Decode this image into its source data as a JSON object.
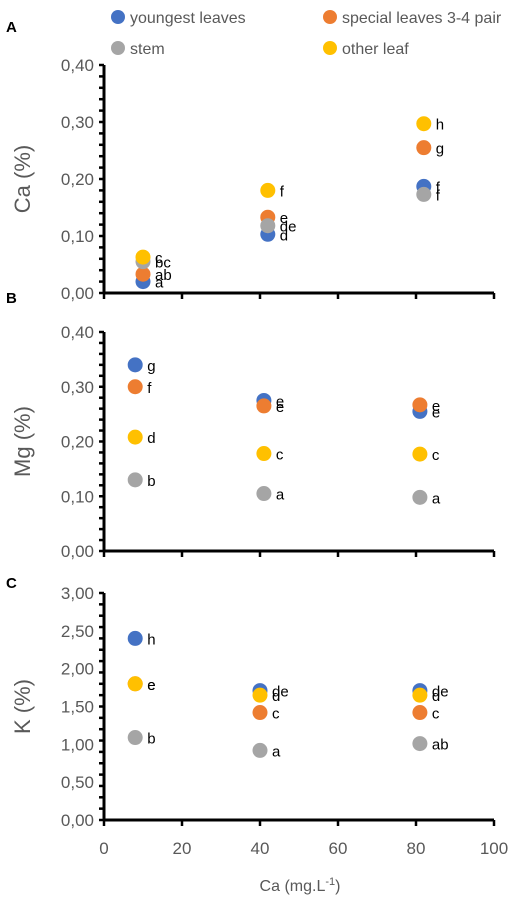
{
  "legend": {
    "entries": [
      {
        "name": "youngest leaves",
        "color": "#4472C4"
      },
      {
        "name": "special leaves 3-4 pair",
        "color": "#ED7D31"
      },
      {
        "name": "stem",
        "color": "#A5A5A5"
      },
      {
        "name": "other leaf",
        "color": "#FFC000"
      }
    ]
  },
  "chart_data": [
    {
      "type": "scatter",
      "panel": "A",
      "ylabel": "Ca (%)",
      "ylim": [
        0,
        0.4
      ],
      "yticks": [
        "0,00",
        "0,10",
        "0,20",
        "0,30",
        "0,40"
      ],
      "xlim": [
        0,
        100
      ],
      "series": [
        {
          "name": "youngest leaves",
          "color": "#4472C4",
          "points": [
            {
              "x": 10,
              "y": 0.02,
              "label": "a"
            },
            {
              "x": 42,
              "y": 0.103,
              "label": "d"
            },
            {
              "x": 82,
              "y": 0.187,
              "label": "f"
            }
          ]
        },
        {
          "name": "special leaves 3-4 pair",
          "color": "#ED7D31",
          "points": [
            {
              "x": 10,
              "y": 0.033,
              "label": "ab"
            },
            {
              "x": 42,
              "y": 0.133,
              "label": "e"
            },
            {
              "x": 82,
              "y": 0.255,
              "label": "g"
            }
          ]
        },
        {
          "name": "stem",
          "color": "#A5A5A5",
          "points": [
            {
              "x": 10,
              "y": 0.055,
              "label": "bc"
            },
            {
              "x": 42,
              "y": 0.118,
              "label": "de"
            },
            {
              "x": 82,
              "y": 0.173,
              "label": "f"
            }
          ]
        },
        {
          "name": "other leaf",
          "color": "#FFC000",
          "points": [
            {
              "x": 10,
              "y": 0.063,
              "label": "c"
            },
            {
              "x": 42,
              "y": 0.18,
              "label": "f"
            },
            {
              "x": 82,
              "y": 0.297,
              "label": "h"
            }
          ]
        }
      ]
    },
    {
      "type": "scatter",
      "panel": "B",
      "ylabel": "Mg (%)",
      "ylim": [
        0,
        0.4
      ],
      "yticks": [
        "0,00",
        "0,10",
        "0,20",
        "0,30",
        "0,40"
      ],
      "xlim": [
        0,
        100
      ],
      "series": [
        {
          "name": "youngest leaves",
          "color": "#4472C4",
          "points": [
            {
              "x": 8,
              "y": 0.34,
              "label": "g"
            },
            {
              "x": 41,
              "y": 0.275,
              "label": "e"
            },
            {
              "x": 81,
              "y": 0.255,
              "label": "e"
            }
          ]
        },
        {
          "name": "special leaves 3-4 pair",
          "color": "#ED7D31",
          "points": [
            {
              "x": 8,
              "y": 0.3,
              "label": "f"
            },
            {
              "x": 41,
              "y": 0.265,
              "label": "e"
            },
            {
              "x": 81,
              "y": 0.267,
              "label": "e"
            }
          ]
        },
        {
          "name": "stem",
          "color": "#A5A5A5",
          "points": [
            {
              "x": 8,
              "y": 0.13,
              "label": "b"
            },
            {
              "x": 41,
              "y": 0.105,
              "label": "a"
            },
            {
              "x": 81,
              "y": 0.098,
              "label": "a"
            }
          ]
        },
        {
          "name": "other leaf",
          "color": "#FFC000",
          "points": [
            {
              "x": 8,
              "y": 0.208,
              "label": "d"
            },
            {
              "x": 41,
              "y": 0.178,
              "label": "c"
            },
            {
              "x": 81,
              "y": 0.177,
              "label": "c"
            }
          ]
        }
      ]
    },
    {
      "type": "scatter",
      "panel": "C",
      "ylabel": "K (%)",
      "xlabel": "Ca (mg.L",
      "xlabel_sup": "-1",
      "xlabel_end": ")",
      "ylim": [
        0,
        3
      ],
      "yticks": [
        "0,00",
        "0,50",
        "1,00",
        "1,50",
        "2,00",
        "2,50",
        "3,00"
      ],
      "xlim": [
        0,
        100
      ],
      "xticks": [
        "0",
        "20",
        "40",
        "60",
        "80",
        "100"
      ],
      "series": [
        {
          "name": "youngest leaves",
          "color": "#4472C4",
          "points": [
            {
              "x": 8,
              "y": 2.4,
              "label": "h"
            },
            {
              "x": 40,
              "y": 1.71,
              "label": "de"
            },
            {
              "x": 81,
              "y": 1.71,
              "label": "de"
            }
          ]
        },
        {
          "name": "special leaves 3-4 pair",
          "color": "#ED7D31",
          "points": [
            {
              "x": 8,
              "y": 1.8,
              "label": "e"
            },
            {
              "x": 40,
              "y": 1.42,
              "label": "c"
            },
            {
              "x": 81,
              "y": 1.42,
              "label": "c"
            }
          ]
        },
        {
          "name": "stem",
          "color": "#A5A5A5",
          "points": [
            {
              "x": 8,
              "y": 1.09,
              "label": "b"
            },
            {
              "x": 40,
              "y": 0.92,
              "label": "a"
            },
            {
              "x": 81,
              "y": 1.01,
              "label": "ab"
            }
          ]
        },
        {
          "name": "other leaf",
          "color": "#FFC000",
          "points": [
            {
              "x": 8,
              "y": 1.8,
              "label": "e"
            },
            {
              "x": 40,
              "y": 1.65,
              "label": "d"
            },
            {
              "x": 81,
              "y": 1.65,
              "label": "d"
            }
          ]
        }
      ]
    }
  ]
}
